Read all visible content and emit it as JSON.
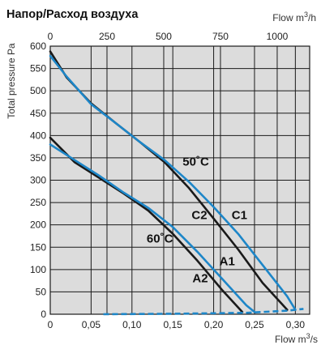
{
  "chart_data": {
    "type": "line",
    "title": "Напор/Расход воздуха",
    "xlabel": "Flow m",
    "xlabel_unit_sup": "3",
    "xlabel_suffix": "/s",
    "x2label": "Flow m",
    "x2label_unit_sup": "3",
    "x2label_suffix": "/h",
    "ylabel": "Total pressure Pa",
    "xlim": [
      0,
      0.3175
    ],
    "ylim": [
      0,
      600
    ],
    "x_ticks": [
      0,
      0.05,
      0.1,
      0.15,
      0.2,
      0.25,
      0.3
    ],
    "x_tick_labels": [
      "0",
      "0,05",
      "0,10",
      "0,15",
      "0,20",
      "0,25",
      "0,30"
    ],
    "x2_ticks": [
      0,
      250,
      500,
      750,
      1000
    ],
    "x2_tick_labels": [
      "0",
      "250",
      "500",
      "750",
      "1000"
    ],
    "y_ticks": [
      0,
      50,
      100,
      150,
      200,
      250,
      300,
      350,
      400,
      450,
      500,
      550,
      600
    ],
    "y_tick_labels": [
      "0",
      "50",
      "100",
      "150",
      "200",
      "250",
      "300",
      "350",
      "400",
      "450",
      "500",
      "550",
      "600"
    ],
    "grid": true,
    "colors": {
      "black": "#1a1a1a",
      "blue": "#1d86c8",
      "plot_bg": "#dcdcdc",
      "grid": "#1a1a1a"
    },
    "series": [
      {
        "name": "C2",
        "color": "#1a1a1a",
        "x": [
          0,
          0.02,
          0.05,
          0.08,
          0.11,
          0.14,
          0.17,
          0.2,
          0.23,
          0.26,
          0.29
        ],
        "y": [
          588,
          530,
          472,
          428,
          385,
          340,
          282,
          214,
          145,
          70,
          10
        ]
      },
      {
        "name": "C1",
        "color": "#1d86c8",
        "x": [
          0,
          0.02,
          0.05,
          0.08,
          0.11,
          0.14,
          0.17,
          0.2,
          0.23,
          0.26,
          0.29,
          0.3
        ],
        "y": [
          578,
          532,
          470,
          428,
          385,
          345,
          296,
          240,
          180,
          110,
          40,
          10
        ]
      },
      {
        "name": "A2",
        "color": "#1a1a1a",
        "x": [
          0,
          0.03,
          0.06,
          0.09,
          0.12,
          0.15,
          0.18,
          0.21,
          0.235
        ],
        "y": [
          395,
          340,
          305,
          270,
          232,
          180,
          120,
          55,
          5
        ]
      },
      {
        "name": "A1",
        "color": "#1d86c8",
        "x": [
          0,
          0.03,
          0.06,
          0.09,
          0.12,
          0.15,
          0.18,
          0.21,
          0.24,
          0.25
        ],
        "y": [
          380,
          345,
          310,
          272,
          238,
          195,
          140,
          80,
          20,
          5
        ]
      }
    ],
    "dashed_series": {
      "color": "#1d86c8",
      "x": [
        0.065,
        0.15,
        0.24,
        0.26,
        0.29,
        0.31
      ],
      "y": [
        0,
        1,
        3,
        5,
        8,
        12
      ]
    },
    "annotations": [
      {
        "text": "50˚C",
        "x": 0.162,
        "y": 333
      },
      {
        "text": "C2",
        "x": 0.173,
        "y": 213
      },
      {
        "text": "C1",
        "x": 0.222,
        "y": 213
      },
      {
        "text": "60˚C",
        "x": 0.118,
        "y": 160
      },
      {
        "text": "A1",
        "x": 0.207,
        "y": 110
      },
      {
        "text": "A2",
        "x": 0.174,
        "y": 72
      }
    ]
  }
}
